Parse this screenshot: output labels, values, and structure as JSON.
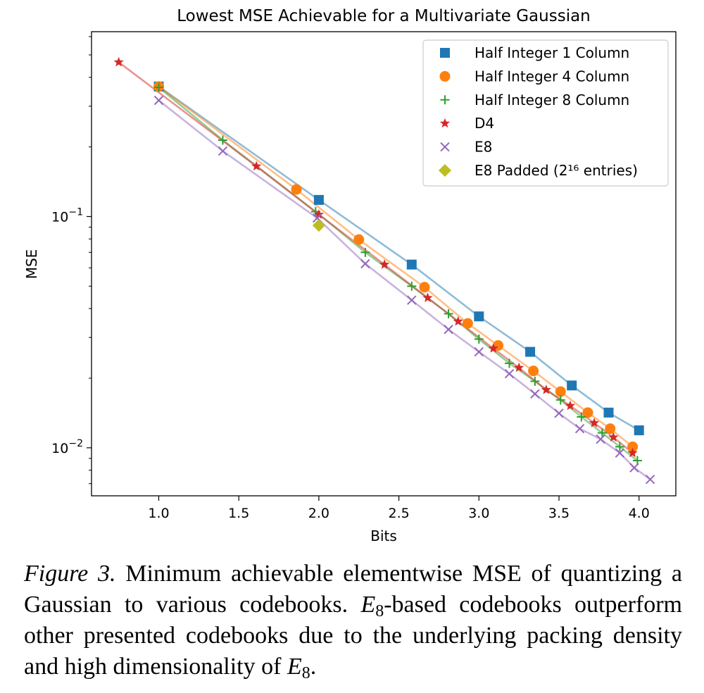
{
  "chart_data": {
    "type": "line",
    "title": "Lowest MSE Achievable for a Multivariate Gaussian",
    "xlabel": "Bits",
    "ylabel": "MSE",
    "yscale": "log",
    "xlim": [
      0.58,
      4.23
    ],
    "ylim": [
      0.0062,
      0.63
    ],
    "x_ticks": [
      "1.0",
      "1.5",
      "2.0",
      "2.5",
      "3.0",
      "3.5",
      "4.0"
    ],
    "y_ticks": [
      {
        "value": 0.1,
        "base": "10",
        "exp": "−1"
      },
      {
        "value": 0.01,
        "base": "10",
        "exp": "−2"
      }
    ],
    "legend_position": "top-right",
    "grid": false,
    "series": [
      {
        "name": "Half Integer 1 Column",
        "marker": "square",
        "color": "#1f77b4",
        "x": [
          1.0,
          2.0,
          2.58,
          3.0,
          3.32,
          3.58,
          3.81,
          4.0
        ],
        "y": [
          0.365,
          0.118,
          0.062,
          0.037,
          0.026,
          0.0186,
          0.0142,
          0.0119
        ]
      },
      {
        "name": "Half Integer 4 Column",
        "marker": "circle",
        "color": "#ff7f0e",
        "x": [
          1.0,
          1.86,
          2.25,
          2.66,
          2.93,
          3.12,
          3.34,
          3.51,
          3.68,
          3.82,
          3.96
        ],
        "y": [
          0.365,
          0.131,
          0.0795,
          0.0495,
          0.0345,
          0.0277,
          0.0215,
          0.0175,
          0.0142,
          0.0121,
          0.0101
        ]
      },
      {
        "name": "Half Integer 8 Column",
        "marker": "plus",
        "color": "#2ca02c",
        "x": [
          1.0,
          1.4,
          1.98,
          2.29,
          2.58,
          2.81,
          3.0,
          3.19,
          3.35,
          3.51,
          3.64,
          3.77,
          3.88,
          3.99
        ],
        "y": [
          0.362,
          0.214,
          0.105,
          0.07,
          0.05,
          0.038,
          0.0295,
          0.0232,
          0.0194,
          0.0161,
          0.0136,
          0.0116,
          0.0101,
          0.0088
        ]
      },
      {
        "name": "D4",
        "marker": "star",
        "color": "#d62728",
        "x": [
          0.75,
          1.61,
          2.0,
          2.41,
          2.68,
          2.87,
          3.09,
          3.25,
          3.42,
          3.57,
          3.72,
          3.84,
          3.96
        ],
        "y": [
          0.465,
          0.165,
          0.102,
          0.062,
          0.0445,
          0.0352,
          0.0269,
          0.0222,
          0.0178,
          0.0152,
          0.0128,
          0.0111,
          0.0095
        ]
      },
      {
        "name": "E8",
        "marker": "x",
        "color": "#9467bd",
        "x": [
          1.0,
          1.4,
          1.99,
          2.29,
          2.58,
          2.81,
          3.0,
          3.19,
          3.35,
          3.5,
          3.63,
          3.76,
          3.88,
          3.97,
          4.07
        ],
        "y": [
          0.318,
          0.192,
          0.0985,
          0.0625,
          0.0435,
          0.0325,
          0.026,
          0.0209,
          0.0171,
          0.0141,
          0.0121,
          0.0109,
          0.0095,
          0.0082,
          0.0073
        ]
      },
      {
        "name": "E8 Padded (2¹⁶ entries)",
        "marker": "diamond",
        "color": "#bcbd22",
        "x": [
          2.0
        ],
        "y": [
          0.0915
        ]
      }
    ]
  },
  "caption": {
    "lead": "Figure 3.",
    "part1": " Minimum achievable elementwise MSE of quantizing a Gaussian to various codebooks. ",
    "math_base": "E",
    "math_sub": "8",
    "part2": "-based codebooks outperform other presented codebooks due to the underlying packing density and high dimensionality of ",
    "math2_base": "E",
    "math2_sub": "8",
    "part3": "."
  }
}
